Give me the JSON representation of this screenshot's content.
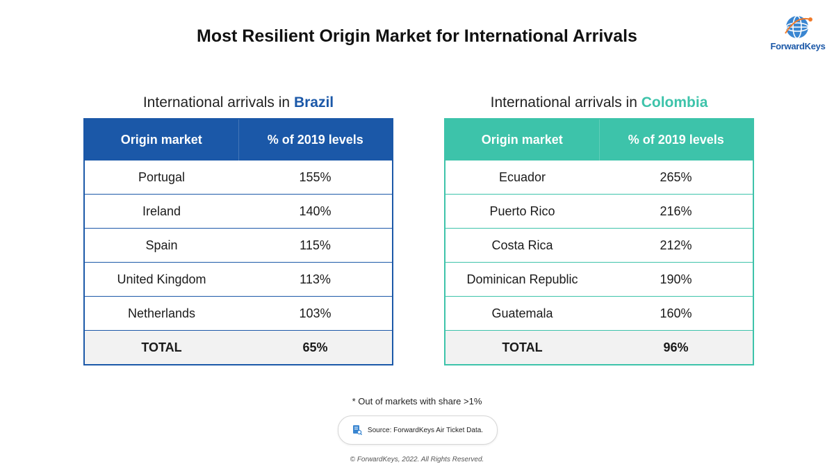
{
  "title": "Most Resilient Origin Market for International Arrivals",
  "logo": {
    "text": "ForwardKeys",
    "icon": "globe-icon"
  },
  "colors": {
    "brazil_accent": "#1b58a8",
    "colombia_accent": "#3dc3aa",
    "total_row_bg": "#f2f2f2"
  },
  "brazil": {
    "subtitle_prefix": "International arrivals in ",
    "country": "Brazil",
    "headers": [
      "Origin market",
      "% of 2019 levels"
    ],
    "rows": [
      [
        "Portugal",
        "155%"
      ],
      [
        "Ireland",
        "140%"
      ],
      [
        "Spain",
        "115%"
      ],
      [
        "United Kingdom",
        "113%"
      ],
      [
        "Netherlands",
        "103%"
      ]
    ],
    "total": [
      "TOTAL",
      "65%"
    ]
  },
  "colombia": {
    "subtitle_prefix": "International arrivals in ",
    "country": "Colombia",
    "headers": [
      "Origin market",
      "% of 2019 levels"
    ],
    "rows": [
      [
        "Ecuador",
        "265%"
      ],
      [
        "Puerto Rico",
        "216%"
      ],
      [
        "Costa Rica",
        "212%"
      ],
      [
        "Dominican Republic",
        "190%"
      ],
      [
        "Guatemala",
        "160%"
      ]
    ],
    "total": [
      "TOTAL",
      "96%"
    ]
  },
  "footnote": "* Out of markets with share >1%",
  "source": {
    "text": "Source: ForwardKeys Air Ticket Data.",
    "icon": "document-search-icon"
  },
  "copyright": "© ForwardKeys, 2022. All Rights Reserved."
}
